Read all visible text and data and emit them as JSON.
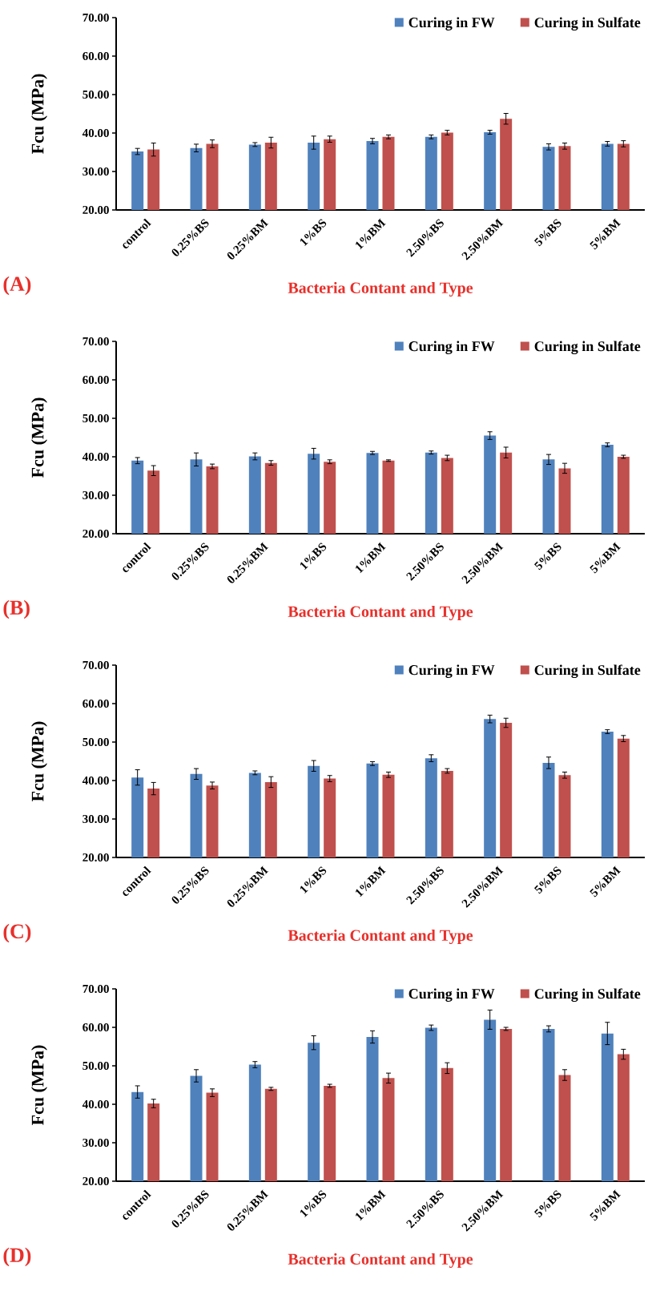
{
  "chart_data": [
    {
      "type": "bar",
      "ylabel": "Fcu (MPa)",
      "xlabel": "Bacteria Contant and Type",
      "annotations": [
        "(A)"
      ],
      "categories": [
        "control",
        "0.25%BS",
        "0.25%BM",
        "1%BS",
        "1%BM",
        "2.50%BS",
        "2.50%BM",
        "5%BS",
        "5%BM"
      ],
      "ylim": [
        20,
        70
      ],
      "yticks": [
        {
          "value": 20,
          "label": "20.00"
        },
        {
          "value": 30,
          "label": "30.00"
        },
        {
          "value": 40,
          "label": "40.00"
        },
        {
          "value": 50,
          "label": "50.00"
        },
        {
          "value": 60,
          "label": "60.00"
        },
        {
          "value": 70,
          "label": "70.00"
        }
      ],
      "legend": "top right",
      "series": [
        {
          "name": "Curing in FW",
          "color": "#4f81bd",
          "values": [
            35.2,
            36.1,
            37.0,
            37.5,
            37.9,
            39.0,
            40.2,
            36.4,
            37.2
          ],
          "errors": [
            0.8,
            1.0,
            0.5,
            1.7,
            0.7,
            0.5,
            0.5,
            0.8,
            0.6
          ]
        },
        {
          "name": "Curing in Sulfate",
          "color": "#c0504d",
          "values": [
            35.7,
            37.2,
            37.5,
            38.4,
            39.0,
            40.1,
            43.7,
            36.6,
            37.2
          ],
          "errors": [
            1.7,
            1.0,
            1.4,
            0.8,
            0.5,
            0.6,
            1.4,
            0.8,
            0.8
          ]
        }
      ]
    },
    {
      "type": "bar",
      "ylabel": "Fcu (MPa)",
      "xlabel": "Bacteria Contant and Type",
      "annotations": [
        "(B)"
      ],
      "categories": [
        "control",
        "0.25%BS",
        "0.25%BM",
        "1%BS",
        "1%BM",
        "2.50%BS",
        "2.50%BM",
        "5%BS",
        "5%BM"
      ],
      "ylim": [
        20,
        70
      ],
      "yticks": [
        {
          "value": 20,
          "label": "20.00"
        },
        {
          "value": 30,
          "label": "30.00"
        },
        {
          "value": 40,
          "label": "40.00"
        },
        {
          "value": 50,
          "label": "50.00"
        },
        {
          "value": 60,
          "label": "60.00"
        },
        {
          "value": 70,
          "label": "70.00"
        }
      ],
      "legend": "top right",
      "series": [
        {
          "name": "Curing in FW",
          "color": "#4f81bd",
          "values": [
            39.0,
            39.3,
            40.1,
            40.8,
            41.0,
            41.1,
            45.5,
            39.3,
            43.1
          ],
          "errors": [
            0.8,
            1.7,
            0.9,
            1.4,
            0.4,
            0.4,
            1.0,
            1.3,
            0.5
          ]
        },
        {
          "name": "Curing in Sulfate",
          "color": "#c0504d",
          "values": [
            36.4,
            37.5,
            38.4,
            38.7,
            39.0,
            39.7,
            41.1,
            37.0,
            40.0
          ],
          "errors": [
            1.3,
            0.6,
            0.6,
            0.5,
            0.2,
            0.7,
            1.4,
            1.3,
            0.4
          ]
        }
      ]
    },
    {
      "type": "bar",
      "ylabel": "Fcu (MPa)",
      "xlabel": "Bacteria Contant and Type",
      "annotations": [
        "(C)"
      ],
      "categories": [
        "control",
        "0.25%BS",
        "0.25%BM",
        "1%BS",
        "1%BM",
        "2.50%BS",
        "2.50%BM",
        "5%BS",
        "5%BM"
      ],
      "ylim": [
        20,
        70
      ],
      "yticks": [
        {
          "value": 20,
          "label": "20.00"
        },
        {
          "value": 30,
          "label": "30.00"
        },
        {
          "value": 40,
          "label": "40.00"
        },
        {
          "value": 50,
          "label": "50.00"
        },
        {
          "value": 60,
          "label": "60.00"
        },
        {
          "value": 70,
          "label": "70.00"
        }
      ],
      "legend": "top right",
      "series": [
        {
          "name": "Curing in FW",
          "color": "#4f81bd",
          "values": [
            40.8,
            41.7,
            42.0,
            43.8,
            44.4,
            45.8,
            56.0,
            44.6,
            52.7
          ],
          "errors": [
            2.0,
            1.4,
            0.5,
            1.4,
            0.5,
            0.9,
            1.0,
            1.5,
            0.5
          ]
        },
        {
          "name": "Curing in Sulfate",
          "color": "#c0504d",
          "values": [
            37.9,
            38.7,
            39.6,
            40.5,
            41.5,
            42.5,
            55.0,
            41.4,
            50.9
          ],
          "errors": [
            1.6,
            0.9,
            1.4,
            0.8,
            0.7,
            0.6,
            1.2,
            0.8,
            0.8
          ]
        }
      ]
    },
    {
      "type": "bar",
      "ylabel": "Fcu (MPa)",
      "xlabel": "Bacteria Contant and Type",
      "annotations": [
        "(D)"
      ],
      "categories": [
        "control",
        "0.25%BS",
        "0.25%BM",
        "1%BS",
        "1%BM",
        "2.50%BS",
        "2.50%BM",
        "5%BS",
        "5%BM"
      ],
      "ylim": [
        20,
        70
      ],
      "yticks": [
        {
          "value": 20,
          "label": "20.00"
        },
        {
          "value": 30,
          "label": "30.00"
        },
        {
          "value": 40,
          "label": "40.00"
        },
        {
          "value": 50,
          "label": "50.00"
        },
        {
          "value": 60,
          "label": "60.00"
        },
        {
          "value": 70,
          "label": "70.00"
        }
      ],
      "legend": "top right",
      "series": [
        {
          "name": "Curing in FW",
          "color": "#4f81bd",
          "values": [
            43.2,
            47.4,
            50.3,
            56.0,
            57.5,
            59.9,
            62.0,
            59.6,
            58.4
          ],
          "errors": [
            1.6,
            1.6,
            0.8,
            1.8,
            1.6,
            0.7,
            2.5,
            0.8,
            2.9
          ]
        },
        {
          "name": "Curing in Sulfate",
          "color": "#c0504d",
          "values": [
            40.2,
            43.0,
            44.0,
            44.8,
            46.8,
            49.4,
            59.6,
            47.6,
            53.0
          ],
          "errors": [
            1.1,
            1.0,
            0.4,
            0.4,
            1.3,
            1.4,
            0.4,
            1.4,
            1.3
          ]
        }
      ]
    }
  ]
}
